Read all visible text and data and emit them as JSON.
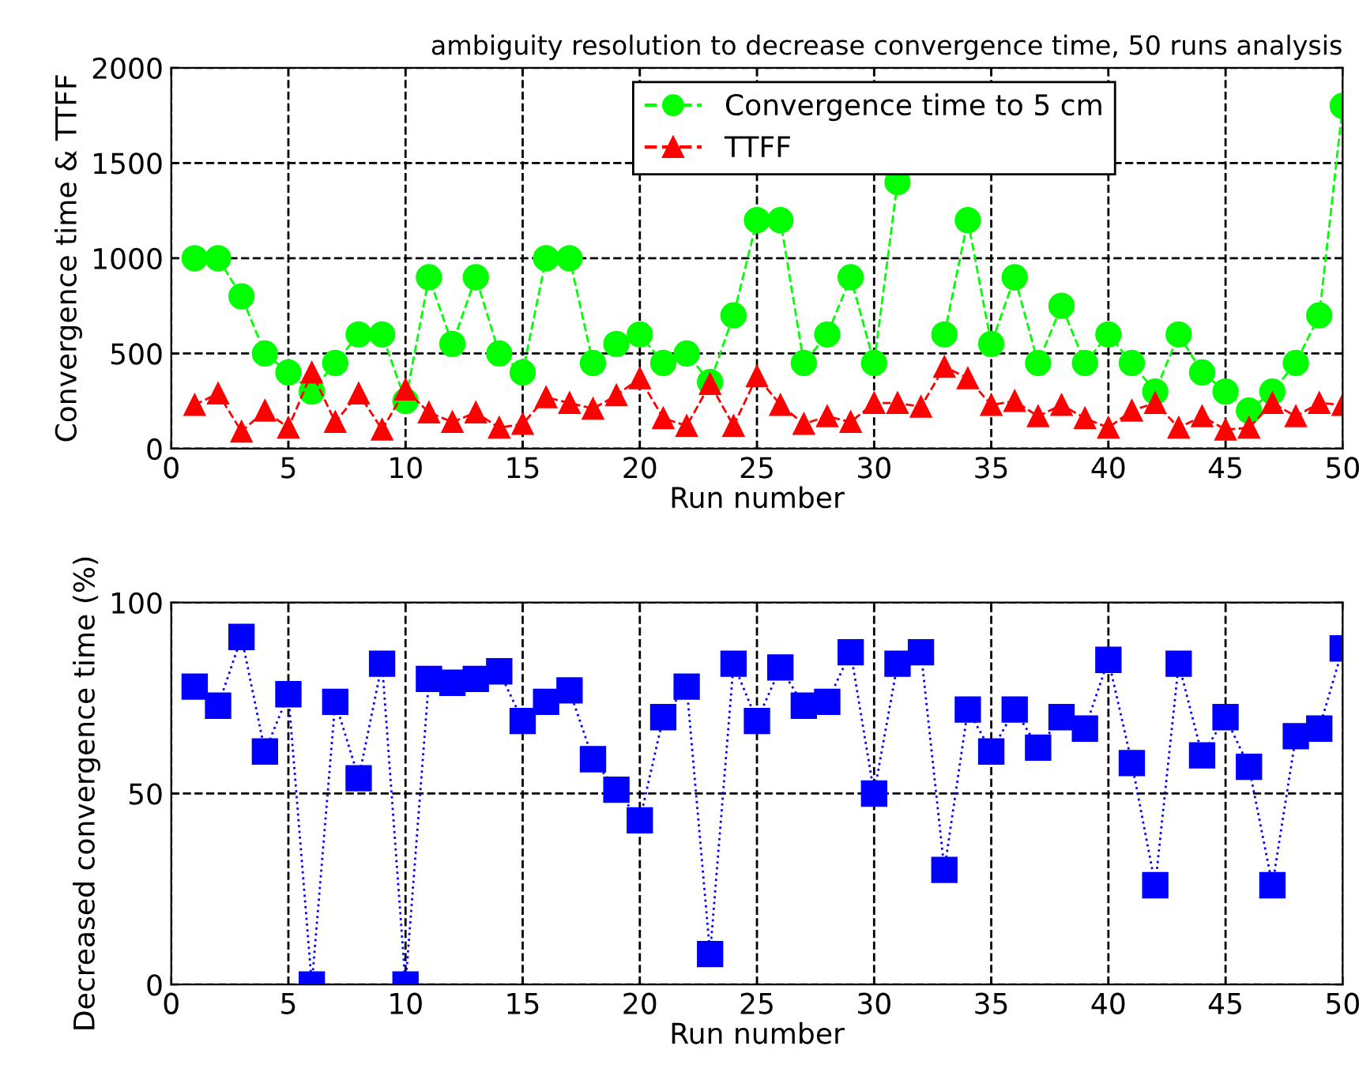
{
  "chart_data": [
    {
      "type": "line",
      "title": "ambiguity resolution to decrease convergence time, 50 runs analysis",
      "xlabel": "Run number",
      "ylabel": "Convergence time & TTFF",
      "x": [
        1,
        2,
        3,
        4,
        5,
        6,
        7,
        8,
        9,
        10,
        11,
        12,
        13,
        14,
        15,
        16,
        17,
        18,
        19,
        20,
        21,
        22,
        23,
        24,
        25,
        26,
        27,
        28,
        29,
        30,
        31,
        32,
        33,
        34,
        35,
        36,
        37,
        38,
        39,
        40,
        41,
        42,
        43,
        44,
        45,
        46,
        47,
        48,
        49,
        50
      ],
      "series": [
        {
          "name": "Convergence time to 5 cm",
          "color": "#00ff00",
          "marker": "circle",
          "values": [
            1000,
            1000,
            800,
            500,
            400,
            300,
            450,
            600,
            600,
            250,
            900,
            550,
            900,
            500,
            400,
            1000,
            1000,
            450,
            550,
            600,
            450,
            500,
            350,
            700,
            1200,
            1200,
            450,
            600,
            900,
            450,
            1400,
            null,
            600,
            1200,
            550,
            900,
            450,
            750,
            450,
            600,
            450,
            300,
            600,
            400,
            300,
            200,
            300,
            450,
            700,
            1800
          ]
        },
        {
          "name": "TTFF",
          "color": "#ff0000",
          "marker": "triangle",
          "values": [
            230,
            290,
            90,
            200,
            110,
            400,
            140,
            290,
            100,
            310,
            190,
            140,
            190,
            110,
            130,
            270,
            240,
            210,
            280,
            370,
            160,
            120,
            340,
            120,
            380,
            230,
            130,
            170,
            140,
            240,
            240,
            220,
            430,
            370,
            230,
            250,
            170,
            230,
            160,
            110,
            200,
            240,
            110,
            170,
            100,
            110,
            240,
            170,
            240,
            230
          ]
        }
      ],
      "xlim": [
        0,
        50
      ],
      "xticks": [
        0,
        5,
        10,
        15,
        20,
        25,
        30,
        35,
        40,
        45,
        50
      ],
      "ylim": [
        0,
        2000
      ],
      "yticks": [
        0,
        500,
        1000,
        1500,
        2000
      ],
      "grid": true,
      "legend": "top",
      "line_style": "dashed"
    },
    {
      "type": "line",
      "xlabel": "Run number",
      "ylabel": "Decreased convergence time (%)",
      "x": [
        1,
        2,
        3,
        4,
        5,
        6,
        7,
        8,
        9,
        10,
        11,
        12,
        13,
        14,
        15,
        16,
        17,
        18,
        19,
        20,
        21,
        22,
        23,
        24,
        25,
        26,
        27,
        28,
        29,
        30,
        31,
        32,
        33,
        34,
        35,
        36,
        37,
        38,
        39,
        40,
        41,
        42,
        43,
        44,
        45,
        46,
        47,
        48,
        49,
        50
      ],
      "series": [
        {
          "color": "#0000ff",
          "marker": "square",
          "values": [
            78,
            73,
            91,
            61,
            76,
            0,
            74,
            54,
            84,
            0,
            80,
            79,
            80,
            82,
            69,
            74,
            77,
            59,
            51,
            43,
            70,
            78,
            8,
            84,
            69,
            83,
            73,
            74,
            87,
            50,
            84,
            87,
            30,
            72,
            61,
            72,
            62,
            70,
            67,
            85,
            58,
            26,
            84,
            60,
            70,
            57,
            26,
            65,
            67,
            88
          ]
        }
      ],
      "xlim": [
        0,
        50
      ],
      "xticks": [
        0,
        5,
        10,
        15,
        20,
        25,
        30,
        35,
        40,
        45,
        50
      ],
      "ylim": [
        0,
        100
      ],
      "yticks": [
        0,
        50,
        100
      ],
      "grid": true,
      "line_style": "dotted"
    }
  ]
}
